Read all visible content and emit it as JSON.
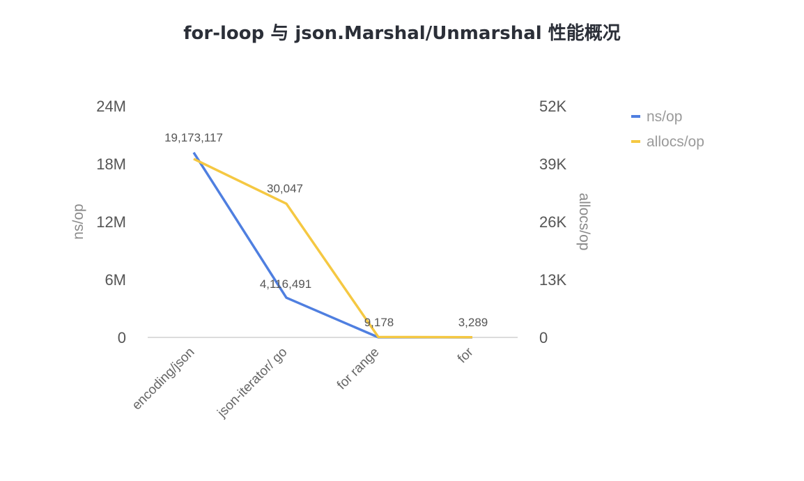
{
  "chart_data": {
    "type": "line",
    "title": "for-loop 与 json.Marshal/Unmarshal 性能概况",
    "categories": [
      "encoding/json",
      "json-iterator/ go",
      "for range",
      "for"
    ],
    "y_left": {
      "label": "ns/op",
      "range": [
        0,
        24000000
      ],
      "ticks": [
        0,
        6000000,
        12000000,
        18000000,
        24000000
      ],
      "tick_labels": [
        "0",
        "6M",
        "12M",
        "18M",
        "24M"
      ]
    },
    "y_right": {
      "label": "allocs/op",
      "range": [
        0,
        52000
      ],
      "ticks": [
        0,
        13000,
        26000,
        39000,
        52000
      ],
      "tick_labels": [
        "0",
        "13K",
        "26K",
        "39K",
        "52K"
      ]
    },
    "series": [
      {
        "name": "ns/op",
        "axis": "left",
        "color": "#4f7fe0",
        "values": [
          19173117,
          4116491,
          9178,
          3289
        ],
        "data_labels": [
          "19,173,117",
          "4,116,491",
          "9,178",
          "3,289"
        ]
      },
      {
        "name": "allocs/op",
        "axis": "right",
        "color": "#f5c842",
        "values": [
          40100,
          30047,
          90,
          40
        ],
        "data_labels": [
          "",
          "30,047",
          "",
          ""
        ]
      }
    ],
    "legend_position": "top-right",
    "grid": false
  }
}
